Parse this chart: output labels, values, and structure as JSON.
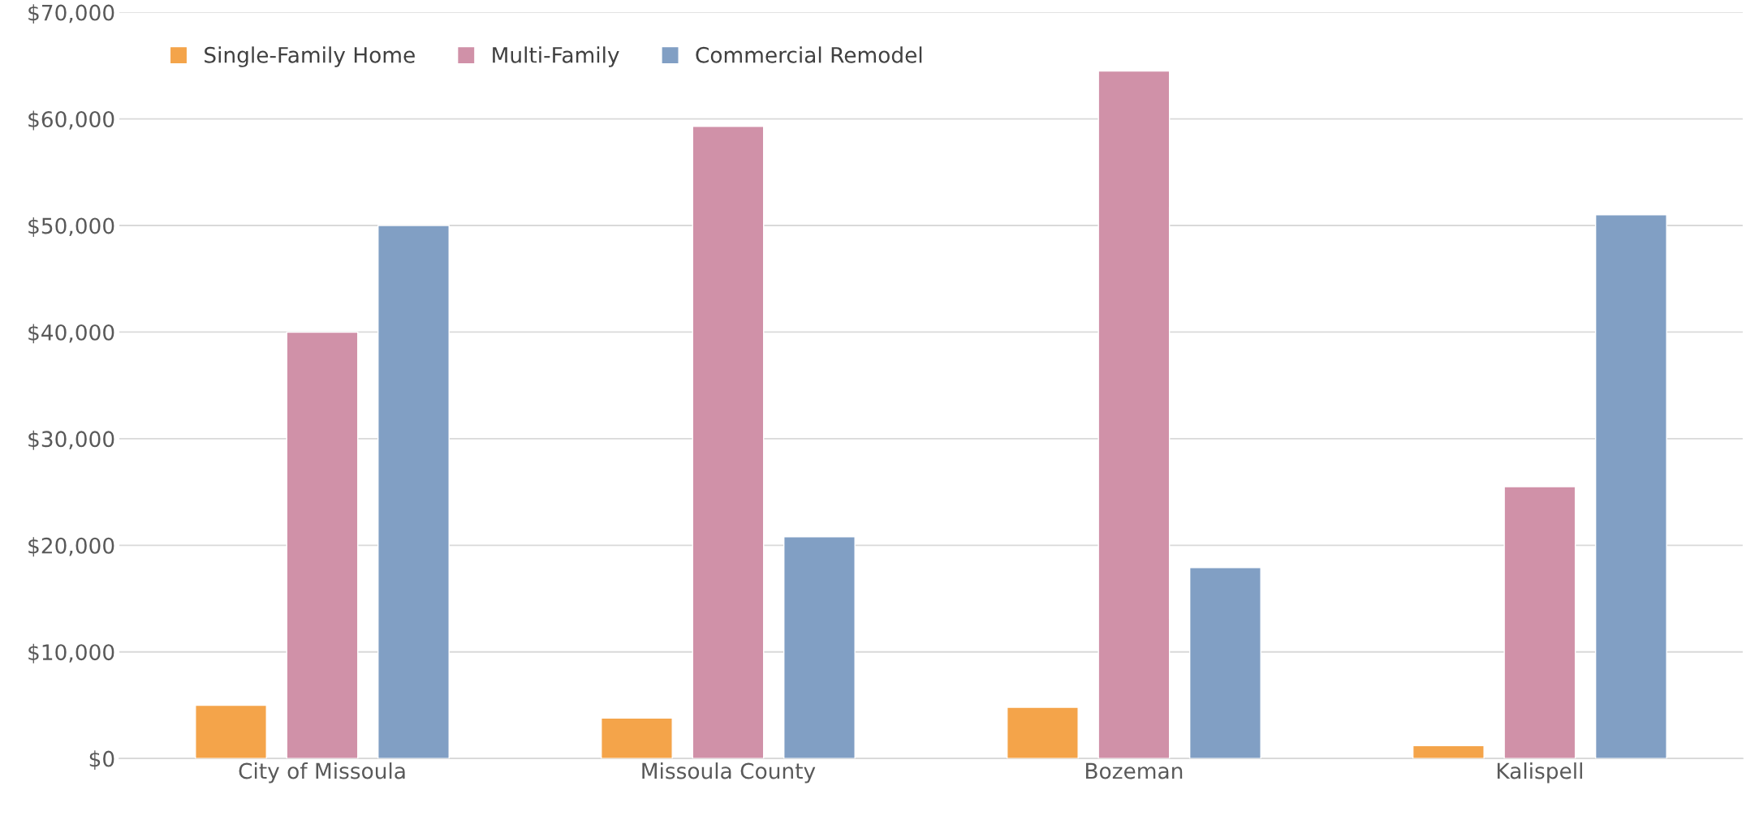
{
  "chart_data": {
    "type": "bar",
    "categories": [
      "City of Missoula",
      "Missoula County",
      "Bozeman",
      "Kalispell"
    ],
    "series": [
      {
        "name": "Single-Family Home",
        "color": "#f4a44a",
        "values": [
          5000,
          3800,
          4800,
          1200
        ]
      },
      {
        "name": "Multi-Family",
        "color": "#d091a8",
        "values": [
          40000,
          59300,
          64500,
          25500
        ]
      },
      {
        "name": "Commercial Remodel",
        "color": "#819fc4",
        "values": [
          50000,
          20800,
          17900,
          51000
        ]
      }
    ],
    "ylim": [
      0,
      70000
    ],
    "yticks": [
      {
        "value": 0,
        "label": "$0"
      },
      {
        "value": 10000,
        "label": "$10,000"
      },
      {
        "value": 20000,
        "label": "$20,000"
      },
      {
        "value": 30000,
        "label": "$30,000"
      },
      {
        "value": 40000,
        "label": "$40,000"
      },
      {
        "value": 50000,
        "label": "$50,000"
      },
      {
        "value": 60000,
        "label": "$60,000"
      },
      {
        "value": 70000,
        "label": "$70,000"
      }
    ],
    "grid": "y",
    "legend": "top left"
  }
}
